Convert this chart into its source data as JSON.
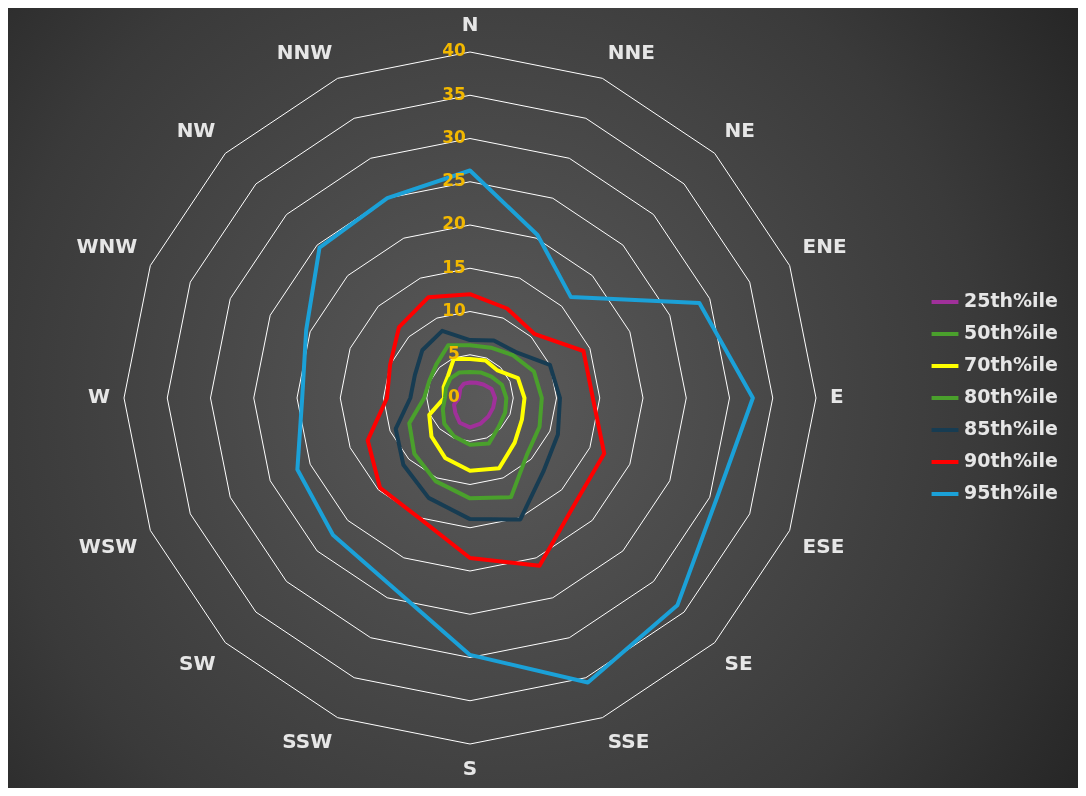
{
  "chart_data": {
    "type": "radar",
    "categories": [
      "N",
      "NNE",
      "NE",
      "ENE",
      "E",
      "ESE",
      "SE",
      "SSE",
      "S",
      "SSW",
      "SW",
      "WSW",
      "W",
      "WNW",
      "NW",
      "NNW"
    ],
    "series": [
      {
        "name": "25th%ile",
        "color": "#a0309a",
        "values": [
          1.8,
          1.9,
          2.2,
          2.7,
          2.9,
          2.9,
          3.0,
          3.2,
          3.4,
          3.1,
          2.4,
          2.0,
          1.3,
          1.3,
          1.6,
          1.8
        ]
      },
      {
        "name": "50th%ile",
        "color": "#4aa02c",
        "values": [
          3.0,
          3.2,
          3.5,
          4.0,
          4.2,
          4.4,
          4.7,
          5.7,
          5.4,
          4.8,
          4.2,
          3.4,
          2.9,
          3.0,
          3.2,
          3.2
        ]
      },
      {
        "name": "70th%ile",
        "color": "#ffff00",
        "values": [
          4.5,
          4.7,
          4.5,
          6.0,
          6.3,
          6.5,
          7.3,
          8.8,
          8.4,
          7.5,
          6.3,
          5.1,
          3.0,
          3.3,
          3.6,
          4.9
        ]
      },
      {
        "name": "80th%ile",
        "color": "#4aa02c",
        "values": [
          6.1,
          6.3,
          7.0,
          8.0,
          8.3,
          8.7,
          9.3,
          12.4,
          11.6,
          10.4,
          9.1,
          7.6,
          5.3,
          5.1,
          5.5,
          6.6
        ]
      },
      {
        "name": "85th%ile",
        "color": "#173c52",
        "values": [
          6.7,
          7.2,
          7.5,
          10.0,
          10.4,
          11.0,
          12.0,
          15.2,
          14.0,
          12.5,
          10.9,
          9.3,
          6.9,
          6.9,
          7.8,
          8.4
        ]
      },
      {
        "name": "90th%ile",
        "color": "#ff0000",
        "values": [
          12.0,
          11.2,
          10.5,
          14.2,
          14.2,
          16.8,
          17.2,
          21.0,
          18.5,
          15.1,
          14.7,
          12.8,
          9.6,
          10.0,
          11.6,
          12.6
        ]
      },
      {
        "name": "95th%ile",
        "color": "#1ba1d8",
        "values": [
          26.3,
          20.4,
          16.5,
          28.7,
          32.7,
          30.8,
          33.9,
          35.6,
          29.7,
          23.6,
          22.4,
          21.6,
          19.4,
          20.5,
          24.6,
          25.0
        ]
      }
    ],
    "ylim": [
      0,
      40
    ],
    "yticks": [
      0,
      5,
      10,
      15,
      20,
      25,
      30,
      35,
      40
    ],
    "grid": true,
    "legend": "right",
    "marker": "none",
    "line_style": "solid"
  }
}
